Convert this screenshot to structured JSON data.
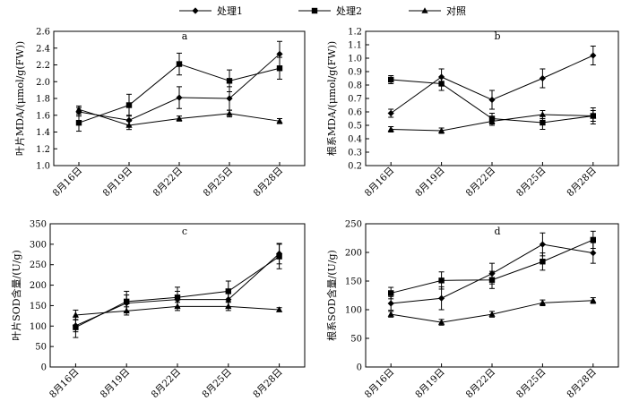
{
  "legend": [
    {
      "name": "处理1",
      "marker": "diamond"
    },
    {
      "name": "处理2",
      "marker": "square"
    },
    {
      "name": "对照",
      "marker": "triangle"
    }
  ],
  "chart_data": [
    {
      "panel": "a",
      "type": "line",
      "ylabel": "叶片MDA/(μmol/g(FW))",
      "ylim": [
        1.0,
        2.6
      ],
      "yticks": [
        "1.0",
        "1.2",
        "1.4",
        "1.6",
        "1.8",
        "2.0",
        "2.2",
        "2.4",
        "2.6"
      ],
      "categories": [
        "8月16日",
        "8月19日",
        "8月22日",
        "8月25日",
        "8月28日"
      ],
      "series": [
        {
          "name": "处理1",
          "values": [
            1.64,
            1.54,
            1.81,
            1.8,
            2.33
          ],
          "errors": [
            0.05,
            0.06,
            0.13,
            0.14,
            0.15
          ]
        },
        {
          "name": "处理2",
          "values": [
            1.51,
            1.72,
            2.21,
            2.01,
            2.16
          ],
          "errors": [
            0.1,
            0.13,
            0.13,
            0.13,
            0.13
          ]
        },
        {
          "name": "对照",
          "values": [
            1.67,
            1.48,
            1.56,
            1.62,
            1.53
          ],
          "errors": [
            0.04,
            0.05,
            0.03,
            0.04,
            0.03
          ]
        }
      ]
    },
    {
      "panel": "b",
      "type": "line",
      "ylabel": "根系MDA/(μmol/g(FW))",
      "ylim": [
        0.2,
        1.2
      ],
      "yticks": [
        "0.2",
        "0.3",
        "0.4",
        "0.5",
        "0.6",
        "0.7",
        "0.8",
        "0.9",
        "1.0",
        "1.1",
        "1.2"
      ],
      "categories": [
        "8月16日",
        "8月19日",
        "8月22日",
        "8月25日",
        "8月28日"
      ],
      "series": [
        {
          "name": "处理1",
          "values": [
            0.59,
            0.86,
            0.69,
            0.85,
            1.02
          ],
          "errors": [
            0.03,
            0.06,
            0.07,
            0.07,
            0.07
          ]
        },
        {
          "name": "处理2",
          "values": [
            0.84,
            0.81,
            0.55,
            0.52,
            0.57
          ],
          "errors": [
            0.03,
            0.05,
            0.04,
            0.05,
            0.04
          ]
        },
        {
          "name": "对照",
          "values": [
            0.47,
            0.46,
            0.53,
            0.58,
            0.57
          ],
          "errors": [
            0.02,
            0.02,
            0.03,
            0.03,
            0.06
          ]
        }
      ]
    },
    {
      "panel": "c",
      "type": "line",
      "ylabel": "叶片SOD含量/(U/g)",
      "ylim": [
        0,
        350
      ],
      "yticks": [
        "0",
        "50",
        "100",
        "150",
        "200",
        "250",
        "300",
        "350"
      ],
      "categories": [
        "8月16日",
        "8月19日",
        "8月22日",
        "8月25日",
        "8月28日"
      ],
      "series": [
        {
          "name": "处理1",
          "values": [
            101,
            156,
            165,
            165,
            277
          ],
          "errors": [
            15,
            20,
            20,
            20,
            25
          ]
        },
        {
          "name": "处理2",
          "values": [
            97,
            160,
            170,
            185,
            270
          ],
          "errors": [
            25,
            25,
            25,
            25,
            30
          ]
        },
        {
          "name": "对照",
          "values": [
            127,
            137,
            148,
            148,
            140
          ],
          "errors": [
            12,
            10,
            10,
            10,
            5
          ]
        }
      ]
    },
    {
      "panel": "d",
      "type": "line",
      "ylabel": "根系SOD含量/(U/g)",
      "ylim": [
        0,
        250
      ],
      "yticks": [
        "0",
        "50",
        "100",
        "150",
        "200",
        "250"
      ],
      "categories": [
        "8月16日",
        "8月19日",
        "8月22日",
        "8月25日",
        "8月28日"
      ],
      "series": [
        {
          "name": "处理1",
          "values": [
            111,
            120,
            163,
            214,
            199
          ],
          "errors": [
            12,
            20,
            18,
            20,
            18
          ]
        },
        {
          "name": "处理2",
          "values": [
            129,
            151,
            152,
            184,
            222
          ],
          "errors": [
            10,
            15,
            15,
            15,
            15
          ]
        },
        {
          "name": "对照",
          "values": [
            92,
            78,
            92,
            112,
            116
          ],
          "errors": [
            5,
            5,
            5,
            5,
            5
          ]
        }
      ]
    }
  ]
}
